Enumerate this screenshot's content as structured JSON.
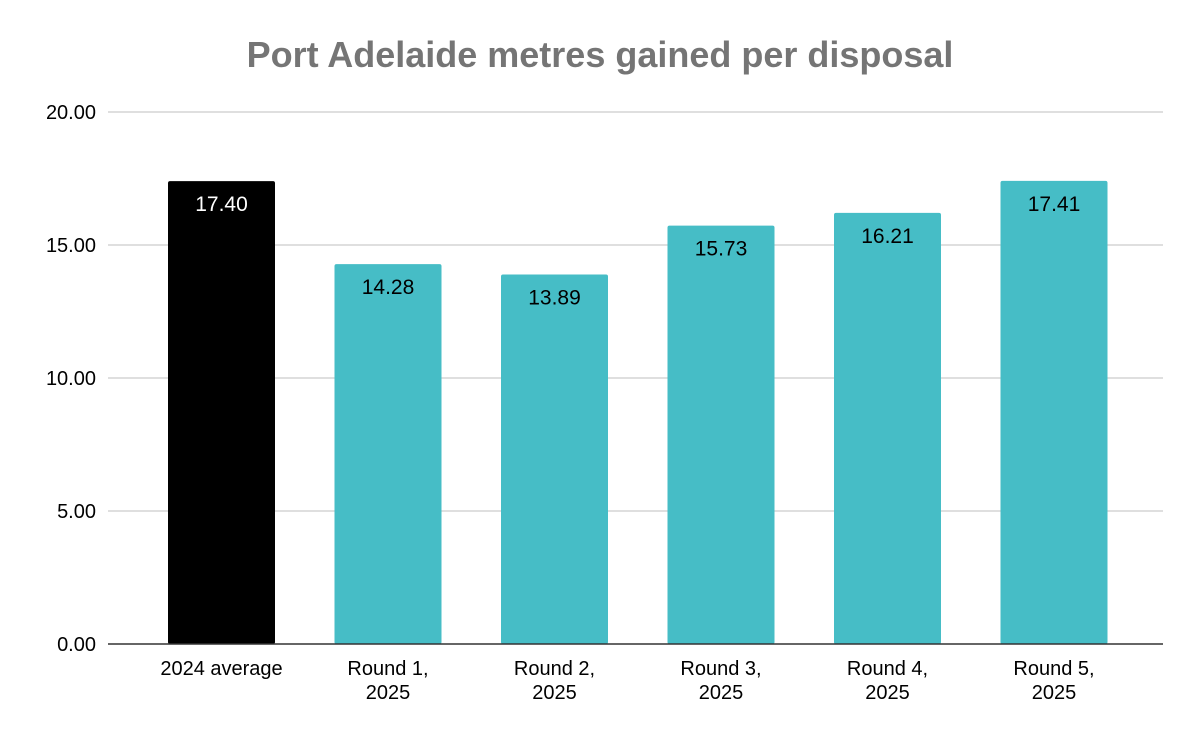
{
  "chart_data": {
    "type": "bar",
    "title": "Port Adelaide metres gained per disposal",
    "xlabel": "",
    "ylabel": "",
    "categories": [
      [
        "2024 average"
      ],
      [
        "Round 1,",
        "2025"
      ],
      [
        "Round 2,",
        "2025"
      ],
      [
        "Round 3,",
        "2025"
      ],
      [
        "Round 4,",
        "2025"
      ],
      [
        "Round 5,",
        "2025"
      ]
    ],
    "values": [
      17.4,
      14.28,
      13.89,
      15.73,
      16.21,
      17.41
    ],
    "data_labels": [
      "17.40",
      "14.28",
      "13.89",
      "15.73",
      "16.21",
      "17.41"
    ],
    "ylim": [
      0,
      20
    ],
    "y_ticks": [
      "0.00",
      "5.00",
      "10.00",
      "15.00",
      "20.00"
    ],
    "y_tick_values": [
      0,
      5,
      10,
      15,
      20
    ],
    "grid": true,
    "legend": "none",
    "colors": {
      "highlight": "#000000",
      "bar": "#46bdc6",
      "highlight_label": "#ffffff",
      "bar_label": "#000000"
    },
    "highlight_index": 0
  }
}
